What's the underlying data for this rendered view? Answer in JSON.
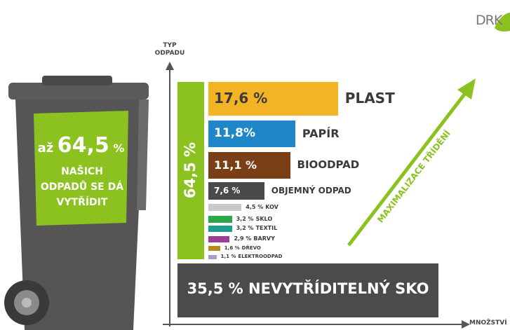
{
  "chart_data": {
    "type": "bar",
    "orientation": "horizontal",
    "y_label": "TYP ODPADU",
    "x_label": "MNOŽSTVÍ",
    "categories": [
      "PLAST",
      "PAPÍR",
      "BIOODPAD",
      "OBJEMNÝ ODPAD",
      "KOV",
      "SKLO",
      "TEXTIL",
      "BARVY",
      "DŘEVO",
      "ELEKTROODPAD"
    ],
    "values": [
      17.6,
      11.8,
      11.1,
      7.6,
      4.5,
      3.2,
      3.2,
      2.9,
      1.6,
      1.1
    ],
    "value_labels": [
      "17,6 %",
      "11,8%",
      "11,1 %",
      "7,6 %",
      "4,5 %",
      "3,2 %",
      "3,2 %",
      "2,9 %",
      "1,6 %",
      "1,1 %"
    ],
    "colors": [
      "#f2b424",
      "#1f87c9",
      "#7b3f16",
      "#4a4a4a",
      "#c9c9c9",
      "#2ba84a",
      "#1f9c90",
      "#9c3d98",
      "#b78b1b",
      "#a79bd2"
    ],
    "sortable_total": {
      "value": 64.5,
      "label": "64,5 %",
      "color": "#8cc21f"
    },
    "residual": {
      "value": 35.5,
      "label": "35,5 % NEVYTŘÍDITELNÝ SKO",
      "color": "#4b4b4b"
    },
    "arrow_label": "MAXIMALIZACE TŘÍDĚNÍ"
  },
  "bin": {
    "prefix": "až",
    "value": {
      "value": 64.5,
      "label": "64,5"
    },
    "unit": "%",
    "text": "NAŠICH ODPADŮ SE DÁ VYTŘÍDIT"
  },
  "logo": "DRK"
}
